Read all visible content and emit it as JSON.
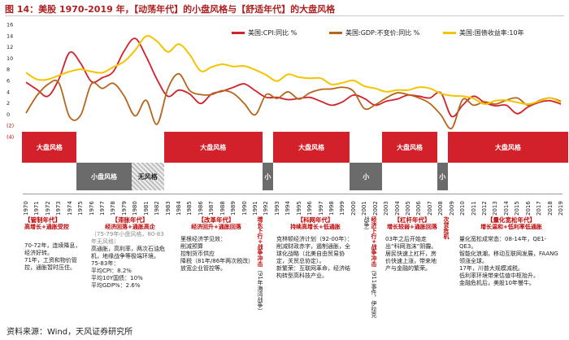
{
  "title": "图 14：美股 1970-2019 年，【动荡年代】的小盘风格与【舒适年代】的大盘风格",
  "source": "资料来源：Wind，天风证券研究所",
  "chart_data": {
    "type": "line",
    "x": [
      1970,
      1971,
      1972,
      1973,
      1974,
      1975,
      1976,
      1977,
      1978,
      1979,
      1980,
      1981,
      1982,
      1983,
      1984,
      1985,
      1986,
      1987,
      1988,
      1989,
      1990,
      1991,
      1992,
      1993,
      1994,
      1995,
      1996,
      1997,
      1998,
      1999,
      2000,
      2001,
      2002,
      2003,
      2004,
      2005,
      2006,
      2007,
      2008,
      2009,
      2010,
      2011,
      2012,
      2013,
      2014,
      2015,
      2016,
      2017,
      2018,
      2019
    ],
    "ylim": [
      -4,
      16
    ],
    "yticks": [
      "16",
      "14",
      "12",
      "10",
      "8",
      "6",
      "4",
      "2",
      "0",
      "(2)",
      "(4)"
    ],
    "ytick_values": [
      16,
      14,
      12,
      10,
      8,
      6,
      4,
      2,
      0,
      -2,
      -4
    ],
    "series": [
      {
        "name": "美国:CPI:同比 %",
        "color": "#d3212c",
        "values": [
          5.7,
          4.4,
          3.2,
          6.2,
          11.0,
          9.1,
          5.8,
          6.5,
          7.6,
          11.3,
          13.5,
          10.3,
          6.2,
          3.2,
          4.3,
          3.6,
          1.9,
          3.6,
          4.1,
          4.8,
          5.4,
          4.2,
          3.0,
          3.0,
          2.6,
          2.8,
          3.0,
          2.3,
          1.6,
          2.2,
          3.4,
          2.8,
          1.6,
          2.3,
          2.7,
          3.4,
          3.2,
          2.9,
          3.8,
          -0.4,
          1.6,
          3.2,
          2.1,
          1.5,
          1.6,
          0.1,
          1.3,
          2.1,
          2.4,
          1.8
        ]
      },
      {
        "name": "美国:GDP:不变价:同比 %",
        "color": "#b5651d",
        "values": [
          0.2,
          3.3,
          5.3,
          5.6,
          -0.5,
          -0.2,
          5.4,
          4.6,
          5.5,
          3.2,
          -0.3,
          2.5,
          -1.8,
          4.6,
          7.2,
          4.2,
          3.5,
          3.5,
          4.2,
          3.7,
          1.9,
          -0.1,
          3.5,
          2.8,
          4.0,
          2.7,
          3.8,
          4.4,
          4.5,
          4.8,
          4.1,
          1.0,
          1.7,
          2.9,
          3.8,
          3.5,
          2.9,
          1.9,
          -0.1,
          -2.5,
          2.6,
          1.6,
          2.2,
          1.8,
          2.5,
          2.9,
          1.6,
          2.4,
          2.9,
          2.3
        ]
      },
      {
        "name": "美国:国债收益率:10年",
        "color": "#f5c400",
        "values": [
          7.4,
          6.2,
          6.2,
          6.9,
          7.6,
          8.0,
          7.6,
          7.4,
          8.4,
          9.4,
          11.4,
          13.9,
          13.0,
          11.1,
          12.5,
          10.6,
          7.7,
          8.4,
          8.9,
          8.5,
          8.6,
          7.9,
          7.0,
          5.9,
          7.1,
          6.6,
          6.4,
          6.4,
          5.3,
          5.6,
          6.0,
          5.0,
          4.6,
          4.0,
          4.3,
          4.3,
          4.8,
          4.6,
          3.7,
          3.3,
          3.2,
          2.8,
          1.8,
          2.4,
          2.5,
          2.1,
          1.8,
          2.3,
          2.9,
          2.1
        ]
      }
    ]
  },
  "market_style": [
    {
      "label": "大盘风格",
      "color": "red",
      "from": 1970,
      "to": 1975,
      "row": "top"
    },
    {
      "label": "小盘风格",
      "color": "gray",
      "from": 1975,
      "to": 1980,
      "row": "bottom"
    },
    {
      "label": "无风格",
      "color": "hatch",
      "from": 1980,
      "to": 1983,
      "row": "bottom"
    },
    {
      "label": "大盘风格",
      "color": "red",
      "from": 1983,
      "to": 1992,
      "row": "top"
    },
    {
      "label": "小",
      "color": "gray",
      "from": 1992,
      "to": 1993,
      "row": "bottom"
    },
    {
      "label": "大盘风格",
      "color": "red",
      "from": 1993,
      "to": 2000,
      "row": "top"
    },
    {
      "label": "小",
      "color": "gray",
      "from": 2000,
      "to": 2003,
      "row": "bottom"
    },
    {
      "label": "大盘风格",
      "color": "red",
      "from": 2003,
      "to": 2008,
      "row": "top"
    },
    {
      "label": "小",
      "color": "gray",
      "from": 2008,
      "to": 2009,
      "row": "bottom"
    },
    {
      "label": "大盘风格",
      "color": "red",
      "from": 2009,
      "to": 2020,
      "row": "top"
    }
  ],
  "panels": {
    "p1": {
      "title": "【管制年代】",
      "sub": "高增长+通胀受控",
      "lines": [
        "70-72年，连续降息，经济好转。",
        "71年，工资和物价管控，通胀暂时压住。"
      ]
    },
    "p2": {
      "title": "【滞胀年代】",
      "sub": "经济回落+通胀高企",
      "lines": [
        "高通胀，高利率，两次石油危机，地缘战争等极端环境。",
        "75-83年：",
        "平均CPI：8.2%",
        "平均10Y国债：10%",
        "平均GDP%：2.6%"
      ],
      "gray": "（75-79年小盘风格，80-83年无风格）"
    },
    "p3": {
      "title": "【改革年代】",
      "sub": "经济回升+通胀回落",
      "lines": [
        "里根经济学见效：",
        "削减预算",
        "控制货币供应",
        "降税（81年/86年两次税改）",
        "放宽企业管控等。"
      ]
    },
    "p4": {
      "title": "【科网年代】",
      "sub": "持续高增长+低通胀",
      "lines": [
        "克林顿经济计划（92-00年）：削减财政赤字，遏制通胀，全球化战略（北美自由贸易协定，关贸总协定）。",
        "新繁荣：互联网革命，经济结构转型高科技产业。"
      ]
    },
    "p5": {
      "title": "【杠杆年代】",
      "sub": "增长较弱+通胀回落",
      "lines": [
        "03年之后开始走出“科网泡沫”阴霾。",
        "居民快速上杠杆，房价快速上涨，带来地产与金融的繁荣。"
      ]
    },
    "p6": {
      "title": "【量化宽松年代】",
      "sub": "增长温和+低利率低通胀",
      "lines": [
        "量化宽松成常态：08-14年，QE1-QE3。",
        "智能化浪潮，移动互联网发展，FAANG领涨全球。",
        "17年，川普大规模减税。",
        "低利率环境带来估值中枢抬升。",
        "金融危机后，美股10年慢牛。"
      ]
    },
    "v1": {
      "red": "增长下行+战争冲击",
      "black": "（91年海湾战争）"
    },
    "v2": {
      "red": "经济下行+战争冲击",
      "black": "（911事件，伊拉克战争）"
    },
    "v3": {
      "red": "次贷危机"
    }
  }
}
